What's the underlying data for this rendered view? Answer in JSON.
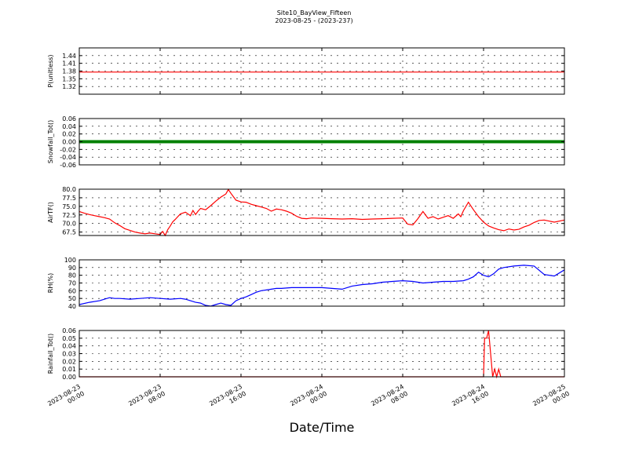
{
  "chart_data": {
    "type": "line",
    "title": "Site10_BayView_Fifteen",
    "subtitle": "2023-08-25 - (2023-237)",
    "xlabel": "Date/Time",
    "grid": true,
    "x_ticks": [
      {
        "line1": "2023-08-23",
        "line2": "00:00",
        "hours": 0
      },
      {
        "line1": "2023-08-23",
        "line2": "08:00",
        "hours": 8
      },
      {
        "line1": "2023-08-23",
        "line2": "16:00",
        "hours": 16
      },
      {
        "line1": "2023-08-24",
        "line2": "00:00",
        "hours": 24
      },
      {
        "line1": "2023-08-24",
        "line2": "08:00",
        "hours": 32
      },
      {
        "line1": "2023-08-24",
        "line2": "16:00",
        "hours": 40
      },
      {
        "line1": "2023-08-25",
        "line2": "00:00",
        "hours": 48
      }
    ],
    "panels": [
      {
        "ylabel": "P(unitless)",
        "ylim": [
          1.29,
          1.47
        ],
        "yticks": [
          "1.44",
          "1.41",
          "1.38",
          "1.35",
          "1.32"
        ],
        "ytick_values": [
          1.44,
          1.41,
          1.38,
          1.35,
          1.32
        ],
        "color": "#ff0000",
        "style": "line",
        "series": {
          "x": [
            0,
            48
          ],
          "y": [
            1.376,
            1.376
          ]
        }
      },
      {
        "ylabel": "Snowfall_Tot()",
        "ylim": [
          -0.06,
          0.06
        ],
        "yticks": [
          "0.06",
          "0.04",
          "0.02",
          "0.00",
          "-0.02",
          "-0.04",
          "-0.06"
        ],
        "ytick_values": [
          0.06,
          0.04,
          0.02,
          0.0,
          -0.02,
          -0.04,
          -0.06
        ],
        "color": "#008000",
        "style": "markers",
        "series": {
          "x": [
            0,
            48
          ],
          "y": [
            0.0,
            0.0
          ]
        }
      },
      {
        "ylabel": "AirTF()",
        "ylim": [
          66.5,
          80.0
        ],
        "yticks": [
          "80.0",
          "77.5",
          "75.0",
          "72.5",
          "70.0",
          "67.5"
        ],
        "ytick_values": [
          80.0,
          77.5,
          75.0,
          72.5,
          70.0,
          67.5
        ],
        "color": "#ff0000",
        "style": "line",
        "series": {
          "x": [
            0,
            0.5,
            1,
            1.5,
            2,
            2.5,
            3,
            3.5,
            4,
            4.5,
            5,
            5.5,
            6,
            6.5,
            7,
            7.5,
            8,
            8.25,
            8.5,
            8.75,
            9,
            9.25,
            9.5,
            9.75,
            10,
            10.5,
            11,
            11.25,
            11.5,
            11.75,
            12,
            12.5,
            13,
            13.5,
            14,
            14.5,
            14.75,
            15,
            15.5,
            16,
            16.5,
            17,
            17.5,
            18,
            18.5,
            19,
            19.5,
            20,
            20.5,
            21,
            21.5,
            22,
            22.5,
            23,
            24,
            25,
            26,
            27,
            28,
            29,
            30,
            31,
            32,
            32.5,
            33,
            33.5,
            34,
            34.5,
            35,
            35.5,
            36,
            36.5,
            37,
            37.5,
            37.75,
            38,
            38.5,
            39,
            39.5,
            40,
            40.5,
            41,
            41.5,
            42,
            42.5,
            43,
            43.5,
            44,
            44.5,
            45,
            45.5,
            46,
            47,
            48
          ],
          "y": [
            73.5,
            73.0,
            72.6,
            72.3,
            72.0,
            71.7,
            71.3,
            70.2,
            69.4,
            68.5,
            68.0,
            67.5,
            67.2,
            67.0,
            67.2,
            67.0,
            66.8,
            67.7,
            66.5,
            68.2,
            69.3,
            70.5,
            71.2,
            72.0,
            72.8,
            73.3,
            72.3,
            73.8,
            72.6,
            73.6,
            74.4,
            74.0,
            75.2,
            76.5,
            77.7,
            78.6,
            79.9,
            78.8,
            76.8,
            76.3,
            76.2,
            75.6,
            75.2,
            74.8,
            74.4,
            73.6,
            74.2,
            74.0,
            73.6,
            73.0,
            72.1,
            71.5,
            71.4,
            71.6,
            71.5,
            71.4,
            71.3,
            71.4,
            71.2,
            71.3,
            71.4,
            71.5,
            71.6,
            69.8,
            69.6,
            71.4,
            73.5,
            71.5,
            72.0,
            71.3,
            71.8,
            72.3,
            71.5,
            72.8,
            72.0,
            73.7,
            76.2,
            74.0,
            72.0,
            70.4,
            69.3,
            68.7,
            68.2,
            67.9,
            68.4,
            68.1,
            68.3,
            69.0,
            69.5,
            70.3,
            70.9,
            71.0,
            70.4,
            71.0
          ]
        }
      },
      {
        "ylabel": "RH(%)",
        "ylim": [
          40,
          100
        ],
        "yticks": [
          "100",
          "90",
          "80",
          "70",
          "60",
          "50",
          "40"
        ],
        "ytick_values": [
          100,
          90,
          80,
          70,
          60,
          50,
          40
        ],
        "color": "#0000ff",
        "style": "line",
        "series": {
          "x": [
            0,
            1,
            2,
            2.5,
            3,
            3.5,
            4,
            5,
            6,
            7,
            8,
            9,
            10,
            10.5,
            11,
            11.5,
            12,
            12.5,
            13,
            13.5,
            14,
            14.5,
            15,
            15.5,
            16,
            16.5,
            17,
            17.5,
            18,
            18.5,
            19,
            19.5,
            20,
            21,
            22,
            23,
            24,
            25,
            26,
            27,
            28,
            29,
            30,
            31,
            32,
            33,
            34,
            35,
            36,
            37,
            38,
            38.5,
            39,
            39.5,
            40,
            40.5,
            41,
            41.5,
            42,
            43,
            44,
            45,
            46,
            47,
            48
          ],
          "y": [
            42,
            45,
            47,
            49,
            51,
            50,
            50,
            49,
            50,
            51,
            50,
            49,
            50,
            49,
            47,
            45,
            44,
            41,
            40,
            42,
            44,
            42,
            41,
            47,
            50,
            52,
            55,
            58,
            60,
            61,
            62,
            63,
            63,
            64,
            64,
            64,
            64,
            63,
            62,
            66,
            68,
            69,
            71,
            72,
            73,
            72,
            70,
            71,
            72,
            72,
            73,
            75,
            78,
            84,
            80,
            78,
            82,
            88,
            90,
            92,
            93,
            92,
            81,
            79,
            87
          ]
        }
      },
      {
        "ylabel": "Rainfall_Tot()",
        "ylim": [
          0,
          0.06
        ],
        "yticks": [
          "0.06",
          "0.05",
          "0.04",
          "0.03",
          "0.02",
          "0.01",
          "0.00"
        ],
        "ytick_values": [
          0.06,
          0.05,
          0.04,
          0.03,
          0.02,
          0.01,
          0.0
        ],
        "color": "#ff0000",
        "style": "line",
        "series": {
          "x": [
            0,
            40,
            40.1,
            40.3,
            40.5,
            40.7,
            40.9,
            41.1,
            41.3,
            41.5,
            41.7,
            42.0,
            48
          ],
          "y": [
            0,
            0,
            0.05,
            0.05,
            0.06,
            0.03,
            0.0,
            0.01,
            0.0,
            0.01,
            0.0,
            0.0,
            0.0
          ]
        }
      }
    ]
  }
}
